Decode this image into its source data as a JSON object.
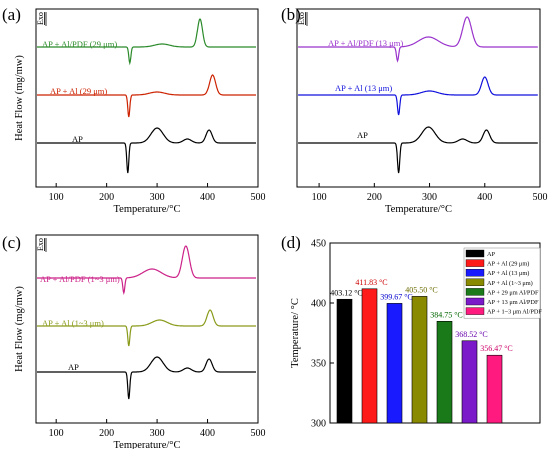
{
  "chart_data": [
    {
      "type": "line",
      "panel_label": "(a)",
      "xlabel": "Temperature/°C",
      "ylabel": "Heat Flow (mg/mw)",
      "exo_label": "Exo",
      "xlim": [
        60,
        500
      ],
      "xticks": [
        100,
        200,
        300,
        400,
        500
      ],
      "series": [
        {
          "name": "AP",
          "color": "#000000",
          "label_color": "#000000",
          "offset": 0,
          "features": [
            [
              242,
              -30,
              2
            ],
            [
              300,
              15,
              12
            ],
            [
              360,
              4,
              8
            ],
            [
              403,
              13,
              6
            ]
          ]
        },
        {
          "name": "AP + Al (29 μm)",
          "color": "#cc2200",
          "label_color": "#cc2200",
          "offset": 48,
          "features": [
            [
              244,
              -22,
              2
            ],
            [
              300,
              3,
              15
            ],
            [
              410,
              20,
              6
            ]
          ]
        },
        {
          "name": "AP + Al/PDF (29 μm)",
          "color": "#2a8a2a",
          "label_color": "#2a8a2a",
          "offset": 96,
          "features": [
            [
              246,
              -16,
              2
            ],
            [
              310,
              3,
              15
            ],
            [
              385,
              28,
              5
            ]
          ]
        }
      ]
    },
    {
      "type": "line",
      "panel_label": "(b)",
      "xlabel": "Temperature/°C",
      "ylabel": "",
      "exo_label": "Exo",
      "xlim": [
        60,
        500
      ],
      "xticks": [
        100,
        200,
        300,
        400,
        500
      ],
      "series": [
        {
          "name": "AP",
          "color": "#000000",
          "label_color": "#000000",
          "offset": 0,
          "features": [
            [
              244,
              -30,
              2
            ],
            [
              298,
              16,
              12
            ],
            [
              360,
              4,
              8
            ],
            [
              403,
              13,
              6
            ]
          ]
        },
        {
          "name": "AP + Al (13 μm)",
          "color": "#1010dd",
          "label_color": "#1010dd",
          "offset": 48,
          "features": [
            [
              244,
              -20,
              2
            ],
            [
              300,
              4,
              15
            ],
            [
              400,
              18,
              6
            ]
          ]
        },
        {
          "name": "AP + Al/PDF (13 μm)",
          "color": "#9933cc",
          "label_color": "#9933cc",
          "offset": 96,
          "features": [
            [
              242,
              -14,
              2
            ],
            [
              298,
              10,
              18
            ],
            [
              368,
              30,
              8
            ]
          ]
        }
      ]
    },
    {
      "type": "line",
      "panel_label": "(c)",
      "xlabel": "Temperature/°C",
      "ylabel": "Heat Flow (mg/mw)",
      "exo_label": "Exo",
      "xlim": [
        60,
        500
      ],
      "xticks": [
        100,
        200,
        300,
        400,
        500
      ],
      "series": [
        {
          "name": "AP",
          "color": "#000000",
          "label_color": "#000000",
          "offset": 0,
          "features": [
            [
              244,
              -27,
              2
            ],
            [
              300,
              15,
              12
            ],
            [
              360,
              4,
              8
            ],
            [
              403,
              13,
              6
            ]
          ]
        },
        {
          "name": "AP + Al (1~3 μm)",
          "color": "#8a9a1a",
          "label_color": "#8a9a1a",
          "offset": 46,
          "features": [
            [
              244,
              -20,
              2
            ],
            [
              305,
              6,
              15
            ],
            [
              405,
              16,
              6
            ]
          ]
        },
        {
          "name": "AP + Al/PDF (1~3 μm)",
          "color": "#cc2288",
          "label_color": "#cc2288",
          "offset": 94,
          "features": [
            [
              234,
              -15,
              2
            ],
            [
              290,
              9,
              18
            ],
            [
              357,
              32,
              7
            ]
          ]
        }
      ]
    },
    {
      "type": "bar",
      "panel_label": "(d)",
      "ylabel": "Temperature/ °C",
      "ylim": [
        300,
        450
      ],
      "yticks": [
        300,
        350,
        400,
        450
      ],
      "categories": [
        "AP",
        "AP + Al (29 μm)",
        "AP + Al (13 μm)",
        "AP + Al (1~3 μm)",
        "AP + 29 μm Al/PDF",
        "AP + 13 μm Al/PDF",
        "AP + 1~3 μm Al/PDF"
      ],
      "values": [
        403.12,
        411.83,
        399.67,
        405.5,
        384.75,
        368.52,
        356.47
      ],
      "value_labels": [
        "403.12 °C",
        "411.83 °C",
        "399.67 °C",
        "405.50 °C",
        "384.75 °C",
        "368.52 °C",
        "356.47 °C"
      ],
      "colors": [
        "#000000",
        "#ff1a1a",
        "#1a1aff",
        "#8a8a00",
        "#1a7a1a",
        "#7a1ac8",
        "#ff1a80"
      ],
      "label_colors": [
        "#000000",
        "#cc0000",
        "#0000cc",
        "#6b6b00",
        "#006600",
        "#6600aa",
        "#cc0066"
      ],
      "legend": "top-right"
    }
  ]
}
